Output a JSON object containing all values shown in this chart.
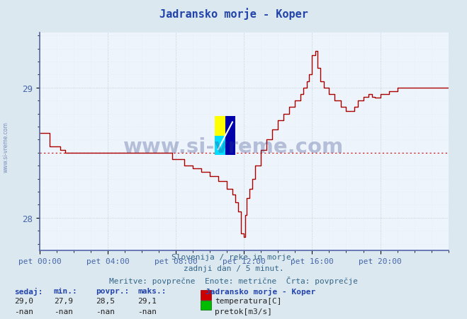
{
  "title": "Jadransko morje - Koper",
  "bg_color": "#dce8f0",
  "plot_bg_color": "#eef4fb",
  "grid_major_color": "#aabbcc",
  "grid_minor_color": "#ccddee",
  "temp_color": "#aa0000",
  "avg_color": "#cc0000",
  "xlabel_color": "#4466aa",
  "ylabel_color": "#4466aa",
  "title_color": "#2244aa",
  "text_color": "#336688",
  "ymin": 27.75,
  "ymax": 29.42,
  "avg_value": 28.5,
  "subtitle1": "Slovenija / reke in morje.",
  "subtitle2": "zadnji dan / 5 minut.",
  "subtitle3": "Meritve: povprečne  Enote: metrične  Črta: povprečje",
  "legend_title": "Jadransko morje - Koper",
  "legend_temp": "temperatura[C]",
  "legend_flow": "pretok[m3/s]",
  "stats_headers": [
    "sedaj:",
    "min.:",
    "povpr.:",
    "maks.:"
  ],
  "stats_temp": [
    "29,0",
    "27,9",
    "28,5",
    "29,1"
  ],
  "stats_flow": [
    "-nan",
    "-nan",
    "-nan",
    "-nan"
  ],
  "xtick_labels": [
    "pet 00:00",
    "pet 04:00",
    "pet 08:00",
    "pet 12:00",
    "pet 16:00",
    "pet 20:00"
  ],
  "ytick_labels": [
    "28",
    "29"
  ],
  "ytick_values": [
    28.0,
    29.0
  ],
  "temp_x": [
    0.0,
    0.5,
    0.6,
    1.2,
    1.5,
    7.5,
    7.8,
    8.5,
    9.0,
    9.5,
    10.0,
    10.5,
    11.0,
    11.3,
    11.5,
    11.67,
    11.83,
    12.0,
    12.08,
    12.17,
    12.33,
    12.5,
    12.67,
    13.0,
    13.33,
    13.67,
    14.0,
    14.33,
    14.67,
    15.0,
    15.33,
    15.5,
    15.67,
    15.83,
    16.0,
    16.17,
    16.33,
    16.5,
    16.67,
    16.83,
    17.0,
    17.33,
    17.67,
    18.0,
    18.5,
    18.67,
    19.0,
    19.33,
    19.5,
    19.67,
    20.0,
    20.5,
    21.0,
    24.0
  ],
  "temp_y": [
    28.65,
    28.65,
    28.55,
    28.52,
    28.5,
    28.5,
    28.45,
    28.4,
    28.38,
    28.35,
    28.32,
    28.28,
    28.22,
    28.18,
    28.12,
    28.05,
    27.88,
    27.85,
    28.02,
    28.15,
    28.22,
    28.3,
    28.4,
    28.52,
    28.6,
    28.68,
    28.75,
    28.8,
    28.85,
    28.9,
    28.95,
    29.0,
    29.05,
    29.1,
    29.25,
    29.28,
    29.15,
    29.05,
    29.0,
    29.0,
    28.95,
    28.9,
    28.85,
    28.82,
    28.85,
    28.9,
    28.93,
    28.95,
    28.93,
    28.92,
    28.95,
    28.97,
    29.0,
    29.0
  ]
}
